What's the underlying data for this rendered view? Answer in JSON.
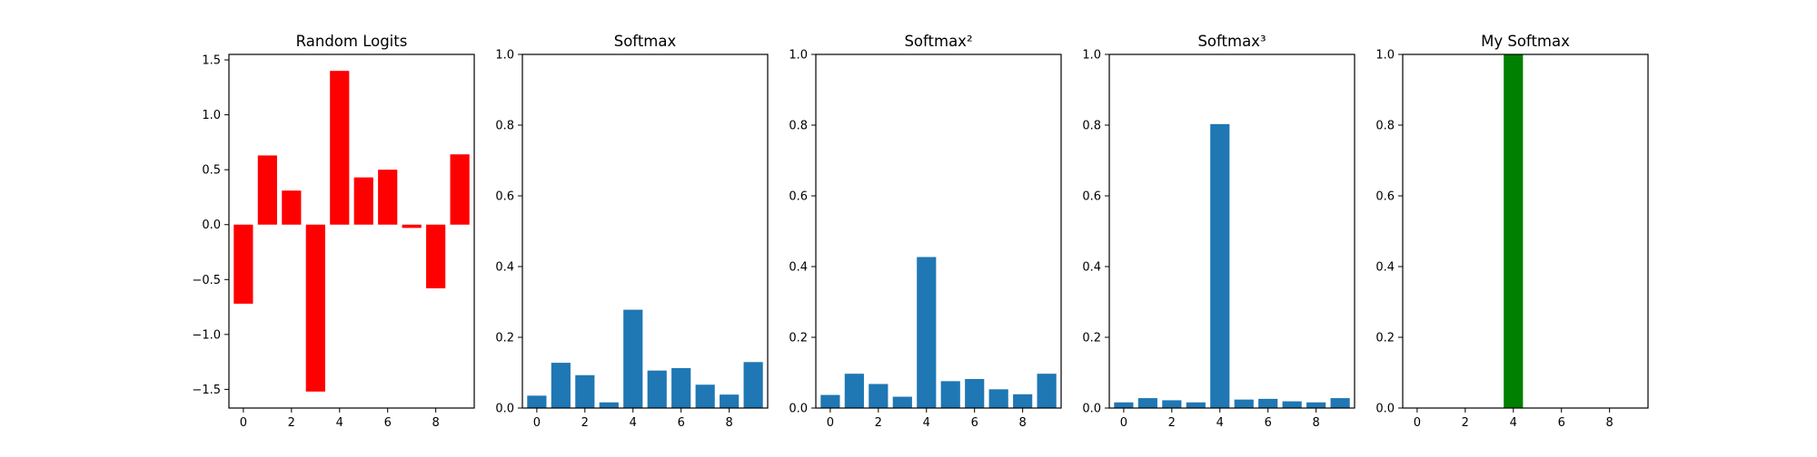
{
  "chart_data": [
    {
      "type": "bar",
      "title": "Random Logits",
      "categories": [
        0,
        1,
        2,
        3,
        4,
        5,
        6,
        7,
        8,
        9
      ],
      "values": [
        -0.72,
        0.63,
        0.31,
        -1.52,
        1.4,
        0.43,
        0.5,
        -0.03,
        -0.58,
        0.64
      ],
      "ylim": [
        -1.67,
        1.55
      ],
      "yticks": [
        -1.5,
        -1.0,
        -0.5,
        0.0,
        0.5,
        1.0,
        1.5
      ],
      "ytick_labels": [
        "−1.5",
        "−1.0",
        "−0.5",
        "0.0",
        "0.5",
        "1.0",
        "1.5"
      ],
      "xlim": [
        -0.6,
        9.6
      ],
      "xticks": [
        0,
        2,
        4,
        6,
        8
      ],
      "xtick_labels": [
        "0",
        "2",
        "4",
        "6",
        "8"
      ],
      "color": "#ff0000",
      "xlabel": "",
      "ylabel": ""
    },
    {
      "type": "bar",
      "title": "Softmax",
      "categories": [
        0,
        1,
        2,
        3,
        4,
        5,
        6,
        7,
        8,
        9
      ],
      "values": [
        0.035,
        0.128,
        0.093,
        0.016,
        0.278,
        0.106,
        0.113,
        0.066,
        0.038,
        0.13
      ],
      "ylim": [
        0,
        1.0
      ],
      "yticks": [
        0.0,
        0.2,
        0.4,
        0.6,
        0.8,
        1.0
      ],
      "ytick_labels": [
        "0.0",
        "0.2",
        "0.4",
        "0.6",
        "0.8",
        "1.0"
      ],
      "xlim": [
        -0.6,
        9.6
      ],
      "xticks": [
        0,
        2,
        4,
        6,
        8
      ],
      "xtick_labels": [
        "0",
        "2",
        "4",
        "6",
        "8"
      ],
      "color": "#1f77b4",
      "xlabel": "",
      "ylabel": ""
    },
    {
      "type": "bar",
      "title": "Softmax²",
      "categories": [
        0,
        1,
        2,
        3,
        4,
        5,
        6,
        7,
        8,
        9
      ],
      "values": [
        0.037,
        0.097,
        0.068,
        0.032,
        0.427,
        0.076,
        0.082,
        0.053,
        0.039,
        0.097
      ],
      "ylim": [
        0,
        1.0
      ],
      "yticks": [
        0.0,
        0.2,
        0.4,
        0.6,
        0.8,
        1.0
      ],
      "ytick_labels": [
        "0.0",
        "0.2",
        "0.4",
        "0.6",
        "0.8",
        "1.0"
      ],
      "xlim": [
        -0.6,
        9.6
      ],
      "xticks": [
        0,
        2,
        4,
        6,
        8
      ],
      "xtick_labels": [
        "0",
        "2",
        "4",
        "6",
        "8"
      ],
      "color": "#1f77b4",
      "xlabel": "",
      "ylabel": ""
    },
    {
      "type": "bar",
      "title": "Softmax³",
      "categories": [
        0,
        1,
        2,
        3,
        4,
        5,
        6,
        7,
        8,
        9
      ],
      "values": [
        0.016,
        0.028,
        0.022,
        0.016,
        0.803,
        0.024,
        0.026,
        0.019,
        0.016,
        0.028
      ],
      "ylim": [
        0,
        1.0
      ],
      "yticks": [
        0.0,
        0.2,
        0.4,
        0.6,
        0.8,
        1.0
      ],
      "ytick_labels": [
        "0.0",
        "0.2",
        "0.4",
        "0.6",
        "0.8",
        "1.0"
      ],
      "xlim": [
        -0.6,
        9.6
      ],
      "xticks": [
        0,
        2,
        4,
        6,
        8
      ],
      "xtick_labels": [
        "0",
        "2",
        "4",
        "6",
        "8"
      ],
      "color": "#1f77b4",
      "xlabel": "",
      "ylabel": ""
    },
    {
      "type": "bar",
      "title": "My Softmax",
      "categories": [
        0,
        1,
        2,
        3,
        4,
        5,
        6,
        7,
        8,
        9
      ],
      "values": [
        0,
        0,
        0,
        0,
        1.0,
        0,
        0,
        0,
        0,
        0
      ],
      "ylim": [
        0,
        1.0
      ],
      "yticks": [
        0.0,
        0.2,
        0.4,
        0.6,
        0.8,
        1.0
      ],
      "ytick_labels": [
        "0.0",
        "0.2",
        "0.4",
        "0.6",
        "0.8",
        "1.0"
      ],
      "xlim": [
        -0.6,
        9.6
      ],
      "xticks": [
        0,
        2,
        4,
        6,
        8
      ],
      "xtick_labels": [
        "0",
        "2",
        "4",
        "6",
        "8"
      ],
      "color": "#008000",
      "xlabel": "",
      "ylabel": ""
    }
  ]
}
